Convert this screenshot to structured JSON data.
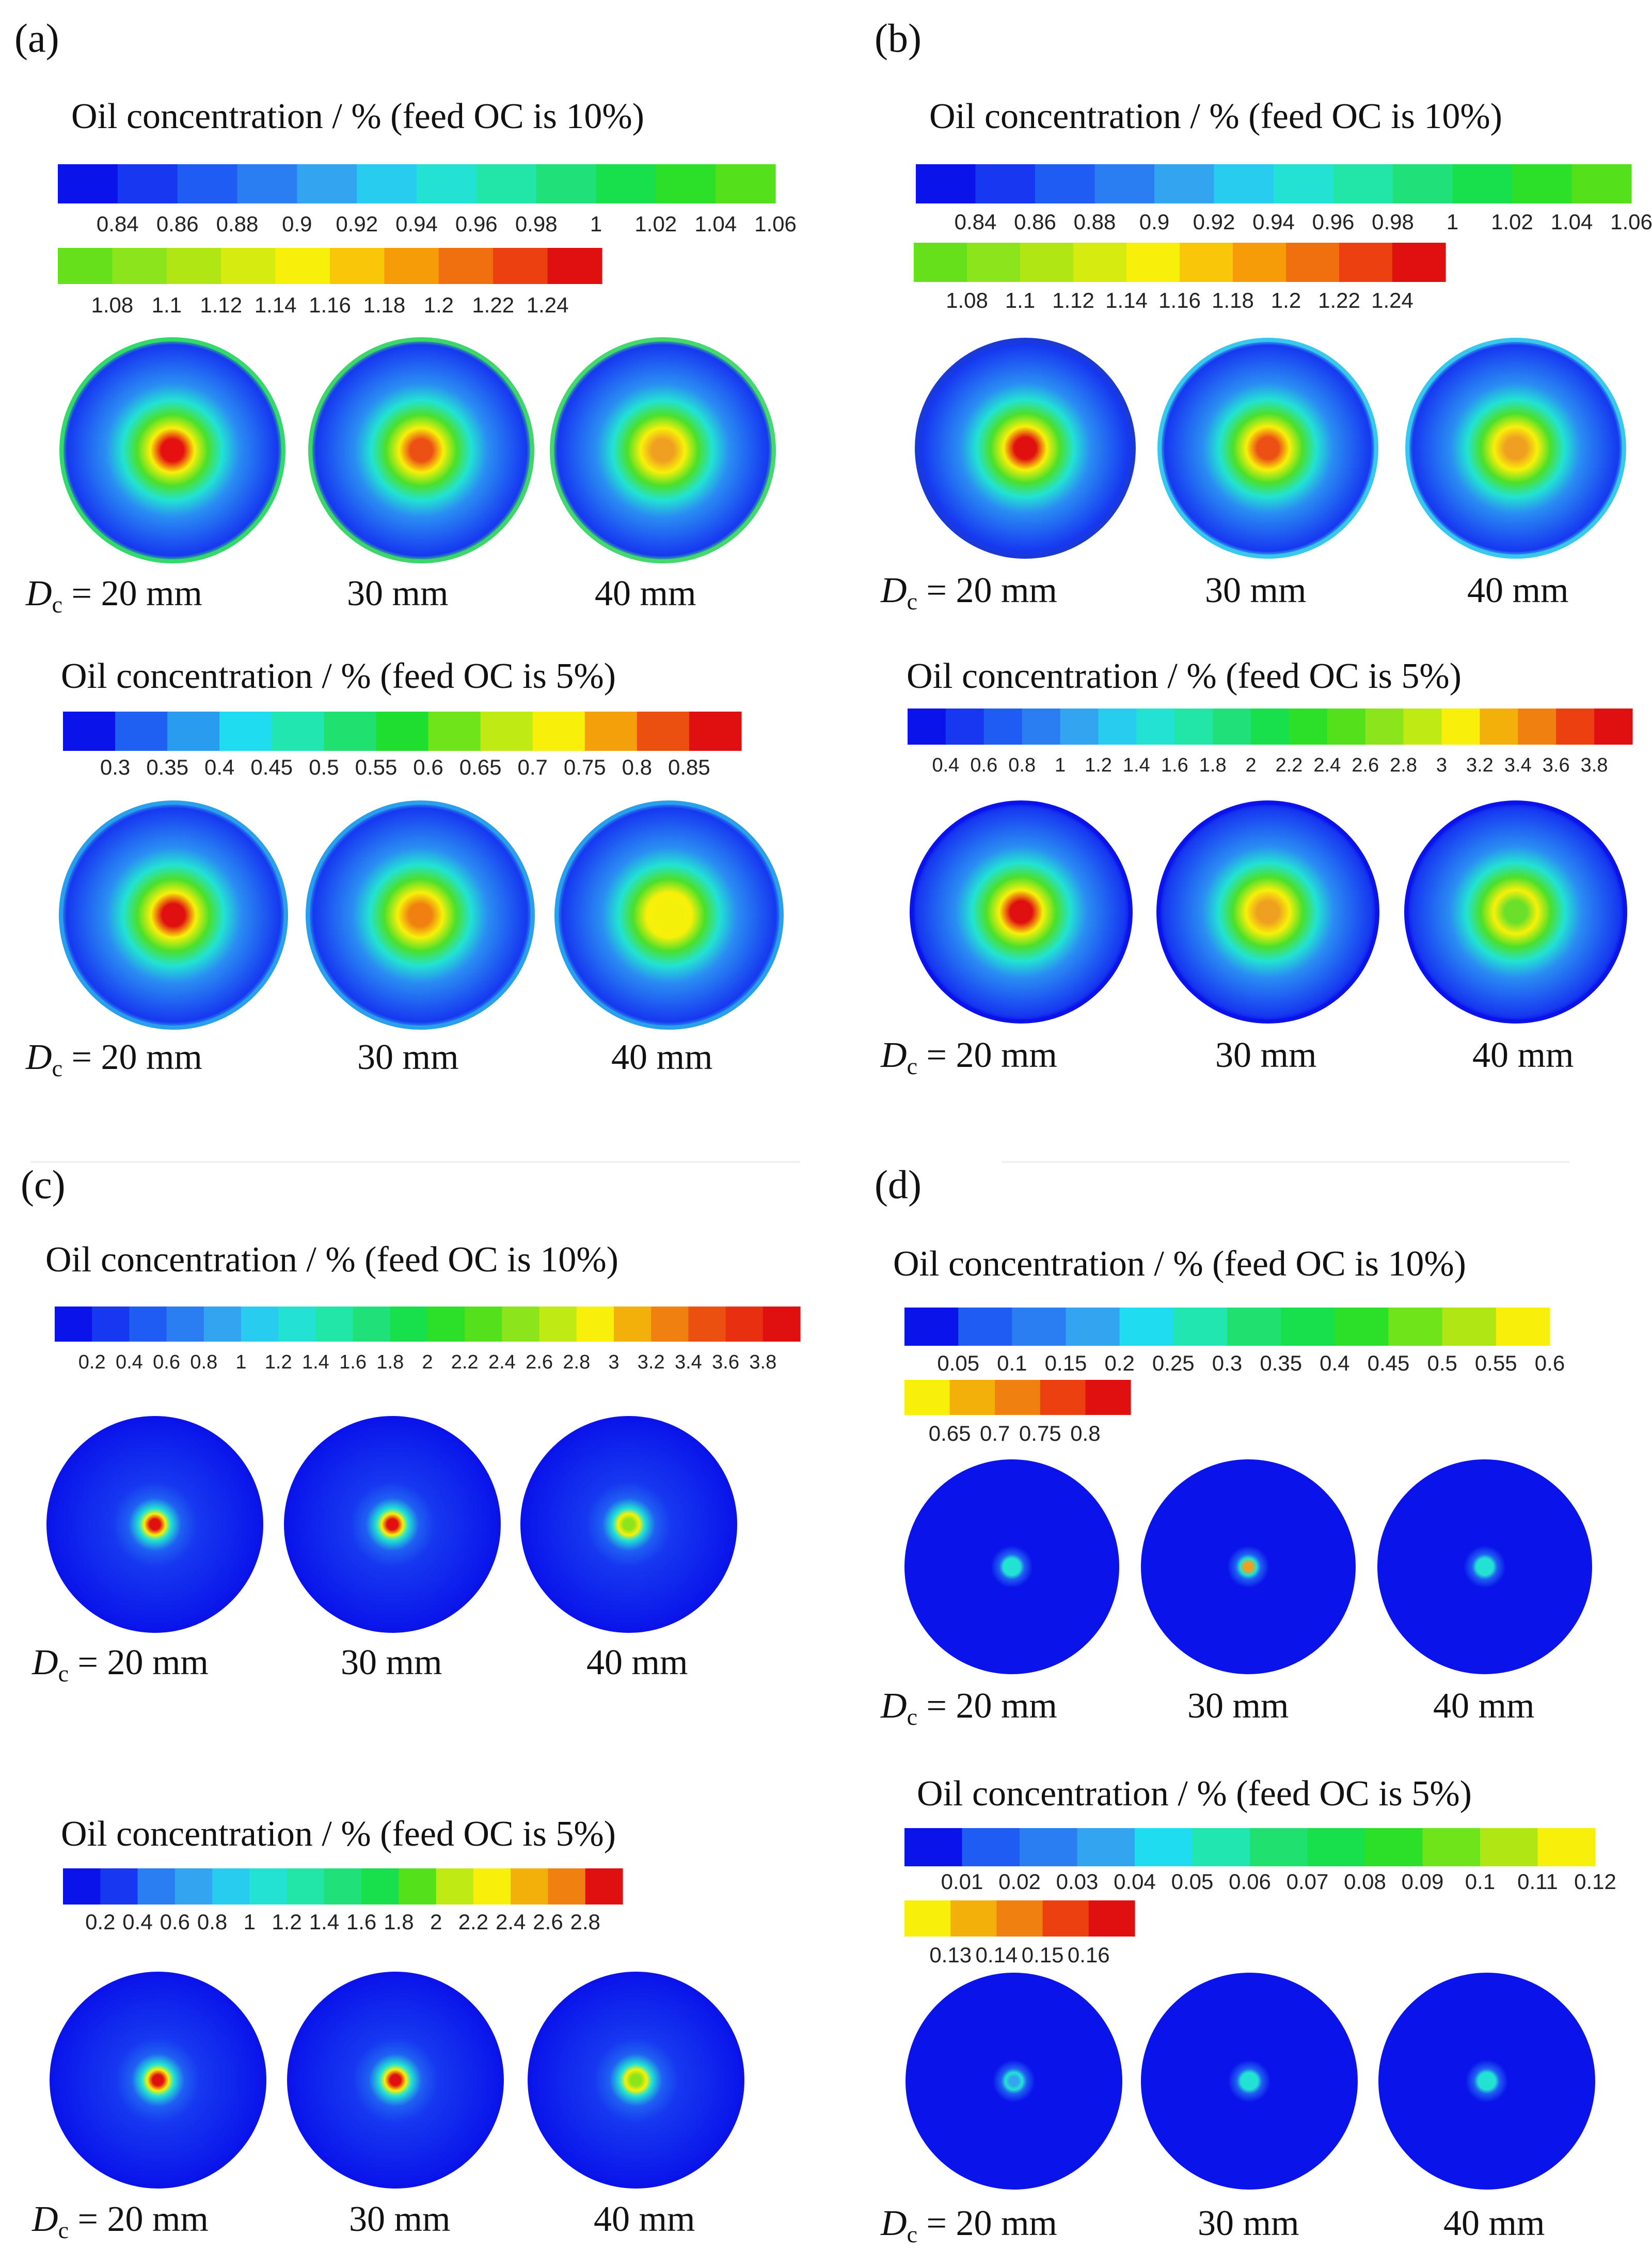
{
  "figure": {
    "panels": [
      {
        "label": "(a)",
        "diam_prefix": "D",
        "diam_sub": "c",
        "diam_labels": [
          "= 20 mm",
          "30 mm",
          "40 mm"
        ],
        "groups": [
          {
            "title": "Oil concentration / % (feed OC is 10%)",
            "colorbar_rows": [
              {
                "ticks": [
                  "0.84",
                  "0.86",
                  "0.88",
                  "0.9",
                  "0.92",
                  "0.94",
                  "0.96",
                  "0.98",
                  "1",
                  "1.02",
                  "1.04",
                  "1.06"
                ],
                "colors": [
                  "#0a14ea",
                  "#1638f0",
                  "#1f5cf2",
                  "#2a7ef2",
                  "#32a4f0",
                  "#28ccef",
                  "#22e3d3",
                  "#22e5a8",
                  "#20e07a",
                  "#18df4c",
                  "#2ce02a",
                  "#55e01c"
                ]
              },
              {
                "ticks": [
                  "1.08",
                  "1.1",
                  "1.12",
                  "1.14",
                  "1.16",
                  "1.18",
                  "1.2",
                  "1.22",
                  "1.24"
                ],
                "colors": [
                  "#66e01a",
                  "#8ce41a",
                  "#b0e614",
                  "#d6ec10",
                  "#f8f00a",
                  "#f8c808",
                  "#f59c08",
                  "#f07010",
                  "#ec4010",
                  "#e01010"
                ]
              }
            ],
            "circles": [
              {
                "ring": "#33d96a",
                "center": "#e51010"
              },
              {
                "ring": "#3ed56b",
                "center": "#ec5014"
              },
              {
                "ring": "#44d86e",
                "center": "#f0a020"
              }
            ]
          },
          {
            "title": "Oil concentration / % (feed OC is 5%)",
            "colorbar_rows": [
              {
                "ticks": [
                  "0.3",
                  "0.35",
                  "0.4",
                  "0.45",
                  "0.5",
                  "0.55",
                  "0.6",
                  "0.65",
                  "0.7",
                  "0.75",
                  "0.8",
                  "0.85"
                ],
                "colors": [
                  "#0a14ea",
                  "#1f60f2",
                  "#2a9cf0",
                  "#20dcf0",
                  "#22e6b0",
                  "#20e070",
                  "#20de30",
                  "#70e41a",
                  "#c0ea14",
                  "#f8f00a",
                  "#f4a00a",
                  "#ec5010",
                  "#e01010"
                ]
              }
            ],
            "circles": [
              {
                "ring": "#2aa0ec",
                "center": "#e01010"
              },
              {
                "ring": "#2aa0ec",
                "center": "#f08010"
              },
              {
                "ring": "#2aa0ec",
                "center": "#f4f00a"
              }
            ]
          }
        ]
      },
      {
        "label": "(b)",
        "diam_prefix": "D",
        "diam_sub": "c",
        "diam_labels": [
          "= 20 mm",
          "30 mm",
          "40 mm"
        ],
        "groups": [
          {
            "title": "Oil concentration / % (feed OC is 10%)",
            "colorbar_rows": [
              {
                "ticks": [
                  "0.84",
                  "0.86",
                  "0.88",
                  "0.9",
                  "0.92",
                  "0.94",
                  "0.96",
                  "0.98",
                  "1",
                  "1.02",
                  "1.04",
                  "1.06"
                ],
                "colors": [
                  "#0a14ea",
                  "#1638f0",
                  "#1f5cf2",
                  "#2a7ef2",
                  "#32a4f0",
                  "#28ccef",
                  "#22e3d3",
                  "#22e5a8",
                  "#20e07a",
                  "#18df4c",
                  "#2ce02a",
                  "#55e01c"
                ]
              },
              {
                "ticks": [
                  "1.08",
                  "1.1",
                  "1.12",
                  "1.14",
                  "1.16",
                  "1.18",
                  "1.2",
                  "1.22",
                  "1.24"
                ],
                "colors": [
                  "#66e01a",
                  "#8ce41a",
                  "#b0e614",
                  "#d6ec10",
                  "#f8f00a",
                  "#f8c808",
                  "#f59c08",
                  "#f07010",
                  "#ec4010",
                  "#e01010"
                ]
              }
            ],
            "circles": [
              {
                "ring": "#1a3ad8",
                "center": "#e01010"
              },
              {
                "ring": "#38c8ee",
                "center": "#ec5014"
              },
              {
                "ring": "#38c8ee",
                "center": "#f0a020"
              }
            ]
          },
          {
            "title": "Oil concentration / % (feed OC is 5%)",
            "colorbar_rows": [
              {
                "ticks": [
                  "0.4",
                  "0.6",
                  "0.8",
                  "1",
                  "1.2",
                  "1.4",
                  "1.6",
                  "1.8",
                  "2",
                  "2.2",
                  "2.4",
                  "2.6",
                  "2.8",
                  "3",
                  "3.2",
                  "3.4",
                  "3.6",
                  "3.8"
                ],
                "colors": [
                  "#0a14ea",
                  "#1638f0",
                  "#1f5cf2",
                  "#2a7ef2",
                  "#32a4f0",
                  "#28ccef",
                  "#22e3d3",
                  "#22e5a8",
                  "#20e07a",
                  "#18df4c",
                  "#2ce02a",
                  "#55e01c",
                  "#8ce41a",
                  "#c0ea14",
                  "#f8f00a",
                  "#f4b00a",
                  "#f08010",
                  "#ec4010",
                  "#e01010"
                ]
              }
            ],
            "circles": [
              {
                "ring": "#0a14ea",
                "center": "#e01010"
              },
              {
                "ring": "#0a14ea",
                "center": "#f0a020"
              },
              {
                "ring": "#0a14ea",
                "center": "#6ae02a"
              }
            ]
          }
        ]
      },
      {
        "label": "(c)",
        "diam_prefix": "D",
        "diam_sub": "c",
        "diam_labels": [
          "= 20 mm",
          "30 mm",
          "40 mm"
        ],
        "groups": [
          {
            "title": "Oil concentration / % (feed OC is 10%)",
            "colorbar_rows": [
              {
                "ticks": [
                  "0.2",
                  "0.4",
                  "0.6",
                  "0.8",
                  "1",
                  "1.2",
                  "1.4",
                  "1.6",
                  "1.8",
                  "2",
                  "2.2",
                  "2.4",
                  "2.6",
                  "2.8",
                  "3",
                  "3.2",
                  "3.4",
                  "3.6",
                  "3.8"
                ],
                "colors": [
                  "#0a14ea",
                  "#1638f0",
                  "#1f5cf2",
                  "#2a7ef2",
                  "#32a4f0",
                  "#28ccef",
                  "#22e3d3",
                  "#22e5a8",
                  "#20e07a",
                  "#18df4c",
                  "#2ce02a",
                  "#55e01c",
                  "#8ce41a",
                  "#c0ea14",
                  "#f8f00a",
                  "#f4b00a",
                  "#f08010",
                  "#ec5010",
                  "#e83010",
                  "#e01010"
                ]
              }
            ],
            "circles": [
              {
                "ring": "#0a14ea",
                "center": "#e01010"
              },
              {
                "ring": "#0a14ea",
                "center": "#e01010"
              },
              {
                "ring": "#0a14ea",
                "center": "#8ce41a"
              }
            ]
          },
          {
            "title": "Oil concentration / % (feed OC is 5%)",
            "colorbar_rows": [
              {
                "ticks": [
                  "0.2",
                  "0.4",
                  "0.6",
                  "0.8",
                  "1",
                  "1.2",
                  "1.4",
                  "1.6",
                  "1.8",
                  "2",
                  "2.2",
                  "2.4",
                  "2.6",
                  "2.8"
                ],
                "colors": [
                  "#0a14ea",
                  "#1638f0",
                  "#2a7ef2",
                  "#32a4f0",
                  "#28ccef",
                  "#22e3d3",
                  "#22e5a8",
                  "#20e07a",
                  "#18df4c",
                  "#55e01c",
                  "#c0ea14",
                  "#f8f00a",
                  "#f4b00a",
                  "#f08010",
                  "#e01010"
                ]
              }
            ],
            "circles": [
              {
                "ring": "#0a14ea",
                "center": "#e01010"
              },
              {
                "ring": "#0a14ea",
                "center": "#e01010"
              },
              {
                "ring": "#0a14ea",
                "center": "#8ce41a"
              }
            ]
          }
        ]
      },
      {
        "label": "(d)",
        "diam_prefix": "D",
        "diam_sub": "c",
        "diam_labels": [
          "= 20 mm",
          "30 mm",
          "40 mm"
        ],
        "groups": [
          {
            "title": "Oil concentration / % (feed OC is 10%)",
            "colorbar_rows": [
              {
                "ticks": [
                  "0.05",
                  "0.1",
                  "0.15",
                  "0.2",
                  "0.25",
                  "0.3",
                  "0.35",
                  "0.4",
                  "0.45",
                  "0.5",
                  "0.55",
                  "0.6"
                ],
                "colors": [
                  "#0a14ea",
                  "#1f5cf2",
                  "#2a7ef2",
                  "#32a4f0",
                  "#20dcf0",
                  "#22e6b0",
                  "#20e070",
                  "#18df4c",
                  "#2ce02a",
                  "#70e41a",
                  "#b0e614",
                  "#f8f00a"
                ]
              },
              {
                "ticks": [
                  "0.65",
                  "0.7",
                  "0.75",
                  "0.8"
                ],
                "colors": [
                  "#f8f00a",
                  "#f4b00a",
                  "#f08010",
                  "#ec4010",
                  "#e01010"
                ]
              }
            ],
            "circles": [
              {
                "ring": "#0a14ea",
                "center": "#22e3d3"
              },
              {
                "ring": "#0a14ea",
                "center": "#f0a020"
              },
              {
                "ring": "#0a14ea",
                "center": "#22e3d3"
              }
            ]
          },
          {
            "title": "Oil concentration / % (feed OC is 5%)",
            "colorbar_rows": [
              {
                "ticks": [
                  "0.01",
                  "0.02",
                  "0.03",
                  "0.04",
                  "0.05",
                  "0.06",
                  "0.07",
                  "0.08",
                  "0.09",
                  "0.1",
                  "0.11",
                  "0.12"
                ],
                "colors": [
                  "#0a14ea",
                  "#1f5cf2",
                  "#2a7ef2",
                  "#32a4f0",
                  "#20dcf0",
                  "#22e6b0",
                  "#20e070",
                  "#18df4c",
                  "#2ce02a",
                  "#70e41a",
                  "#b0e614",
                  "#f8f00a"
                ]
              },
              {
                "ticks": [
                  "0.13",
                  "0.14",
                  "0.15",
                  "0.16"
                ],
                "colors": [
                  "#f8f00a",
                  "#f4b00a",
                  "#f08010",
                  "#ec4010",
                  "#e01010"
                ]
              }
            ],
            "circles": [
              {
                "ring": "#0a14ea",
                "center": "#32a4f0"
              },
              {
                "ring": "#0a14ea",
                "center": "#22e3d3"
              },
              {
                "ring": "#0a14ea",
                "center": "#22e3d3"
              }
            ]
          }
        ]
      }
    ]
  }
}
